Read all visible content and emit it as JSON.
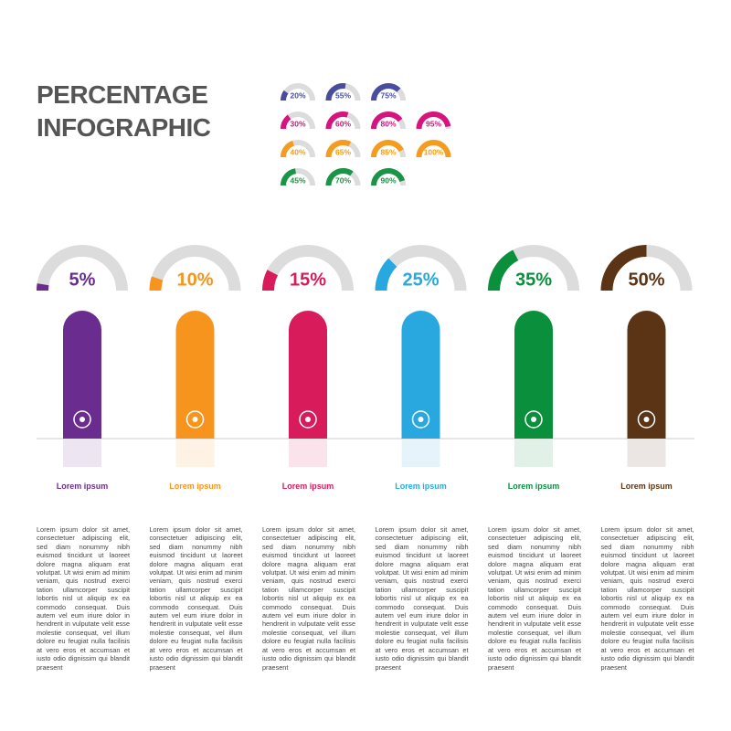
{
  "header": {
    "title": "PERCENTAGE INFOGRAPHIC"
  },
  "chart_data": [
    {
      "type": "gauge",
      "ylim": [
        0,
        100
      ],
      "series": [
        {
          "color": "#4a4d9e",
          "values": [
            20,
            55,
            75
          ],
          "value_labels": [
            "20%",
            "55%",
            "75%"
          ]
        },
        {
          "color": "#d6137f",
          "values": [
            30,
            60,
            80,
            95
          ],
          "value_labels": [
            "30%",
            "60%",
            "80%",
            "95%"
          ]
        },
        {
          "color": "#f39c1f",
          "values": [
            40,
            65,
            85,
            100
          ],
          "value_labels": [
            "40%",
            "65%",
            "85%",
            "100%"
          ]
        },
        {
          "color": "#1a9447",
          "values": [
            45,
            70,
            90
          ],
          "value_labels": [
            "45%",
            "70%",
            "90%"
          ]
        }
      ]
    },
    {
      "type": "gauge",
      "ylim": [
        0,
        100
      ],
      "categories": [
        "Lorem ipsum",
        "Lorem ipsum",
        "Lorem ipsum",
        "Lorem ipsum",
        "Lorem ipsum",
        "Lorem ipsum"
      ],
      "values": [
        5,
        10,
        15,
        25,
        35,
        50
      ],
      "value_labels": [
        "5%",
        "10%",
        "15%",
        "25%",
        "35%",
        "50%"
      ],
      "colors": [
        "#6a2c8e",
        "#f7941d",
        "#d81b5a",
        "#29a8e0",
        "#0a8f3c",
        "#5a3415"
      ],
      "descriptions": [
        "Lorem ipsum dolor sit amet, consectetuer adipiscing elit, sed diam nonummy nibh euismod tincidunt ut laoreet dolore magna aliquam erat volutpat. Ut wisi enim ad minim veniam, quis nostrud exerci tation ullamcorper suscipit lobortis nisl ut aliquip ex ea commodo consequat. Duis autem vel eum iriure dolor in hendrerit in vulputate velit esse molestie consequat, vel illum dolore eu feugiat nulla facilisis at vero eros et accumsan et iusto odio dignissim qui blandit praesent",
        "Lorem ipsum dolor sit amet, consectetuer adipiscing elit, sed diam nonummy nibh euismod tincidunt ut laoreet dolore magna aliquam erat volutpat. Ut wisi enim ad minim veniam, quis nostrud exerci tation ullamcorper suscipit lobortis nisl ut aliquip ex ea commodo consequat. Duis autem vel eum iriure dolor in hendrerit in vulputate velit esse molestie consequat, vel illum dolore eu feugiat nulla facilisis at vero eros et accumsan et iusto odio dignissim qui blandit praesent",
        "Lorem ipsum dolor sit amet, consectetuer adipiscing elit, sed diam nonummy nibh euismod tincidunt ut laoreet dolore magna aliquam erat volutpat. Ut wisi enim ad minim veniam, quis nostrud exerci tation ullamcorper suscipit lobortis nisl ut aliquip ex ea commodo consequat. Duis autem vel eum iriure dolor in hendrerit in vulputate velit esse molestie consequat, vel illum dolore eu feugiat nulla facilisis at vero eros et accumsan et iusto odio dignissim qui blandit praesent",
        "Lorem ipsum dolor sit amet, consectetuer adipiscing elit, sed diam nonummy nibh euismod tincidunt ut laoreet dolore magna aliquam erat volutpat. Ut wisi enim ad minim veniam, quis nostrud exerci tation ullamcorper suscipit lobortis nisl ut aliquip ex ea commodo consequat. Duis autem vel eum iriure dolor in hendrerit in vulputate velit esse molestie consequat, vel illum dolore eu feugiat nulla facilisis at vero eros et accumsan et iusto odio dignissim qui blandit praesent",
        "Lorem ipsum dolor sit amet, consectetuer adipiscing elit, sed diam nonummy nibh euismod tincidunt ut laoreet dolore magna aliquam erat volutpat. Ut wisi enim ad minim veniam, quis nostrud exerci tation ullamcorper suscipit lobortis nisl ut aliquip ex ea commodo consequat. Duis autem vel eum iriure dolor in hendrerit in vulputate velit esse molestie consequat, vel illum dolore eu feugiat nulla facilisis at vero eros et accumsan et iusto odio dignissim qui blandit praesent",
        "Lorem ipsum dolor sit amet, consectetuer adipiscing elit, sed diam nonummy nibh euismod tincidunt ut laoreet dolore magna aliquam erat volutpat. Ut wisi enim ad minim veniam, quis nostrud exerci tation ullamcorper suscipit lobortis nisl ut aliquip ex ea commodo consequat. Duis autem vel eum iriure dolor in hendrerit in vulputate velit esse molestie consequat, vel illum dolore eu feugiat nulla facilisis at vero eros et accumsan et iusto odio dignissim qui blandit praesent"
      ]
    }
  ]
}
